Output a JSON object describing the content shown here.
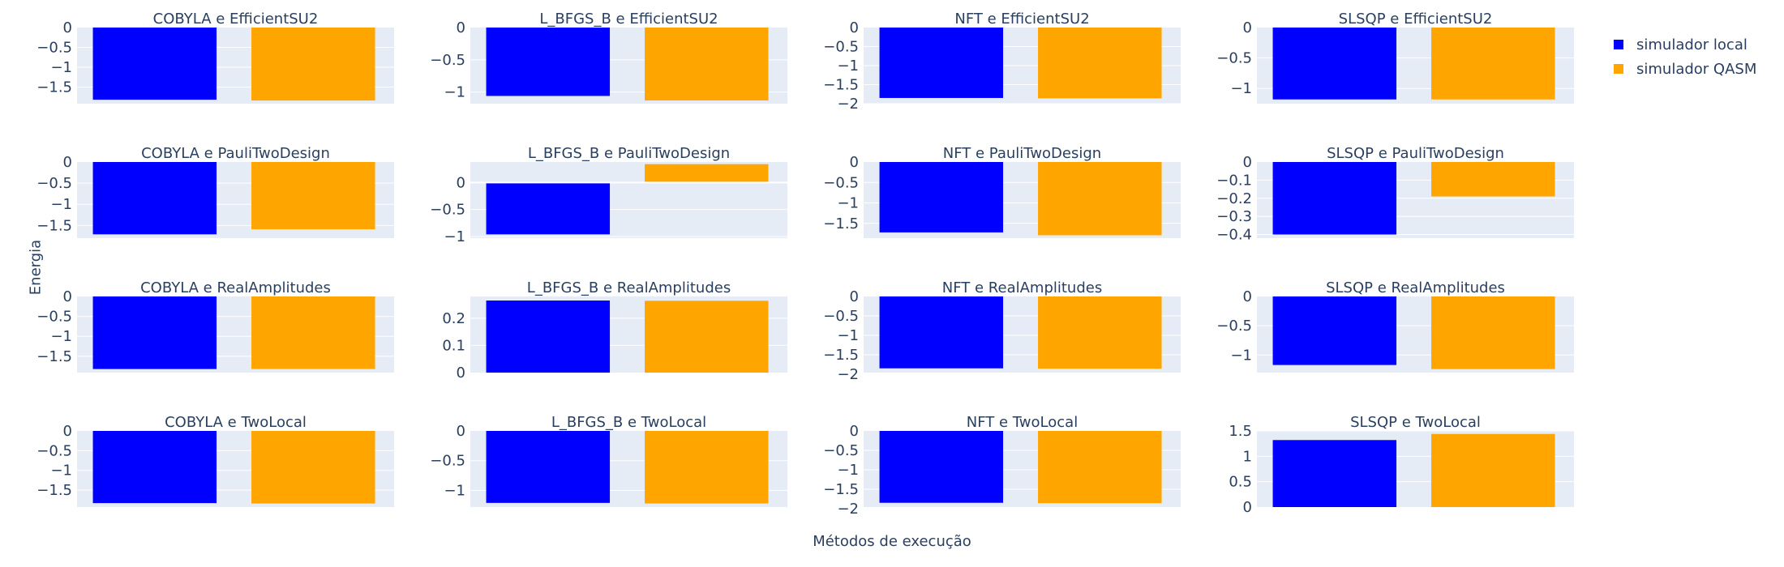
{
  "chart_data": {
    "type": "bar",
    "xlabel": "Métodos de execução",
    "ylabel": "Energia",
    "series": [
      {
        "name": "simulador local",
        "color": "#0000ff"
      },
      {
        "name": "simulador QASM",
        "color": "#ffa500"
      }
    ],
    "panels": [
      {
        "title": "COBYLA e EfficientSU2",
        "values": [
          -1.82,
          -1.84
        ],
        "ylim": [
          -1.92,
          0
        ],
        "ticks": [
          0,
          -0.5,
          -1,
          -1.5
        ]
      },
      {
        "title": "L_BFGS_B e EfficientSU2",
        "values": [
          -1.06,
          -1.13
        ],
        "ylim": [
          -1.18,
          0
        ],
        "ticks": [
          0,
          -0.5,
          -1
        ]
      },
      {
        "title": "NFT e EfficientSU2",
        "values": [
          -1.85,
          -1.86
        ],
        "ylim": [
          -2.0,
          0
        ],
        "ticks": [
          0,
          -0.5,
          -1,
          -1.5,
          -2
        ]
      },
      {
        "title": "SLSQP e EfficientSU2",
        "values": [
          -1.18,
          -1.18
        ],
        "ylim": [
          -1.25,
          0
        ],
        "ticks": [
          0,
          -0.5,
          -1
        ]
      },
      {
        "title": "COBYLA e PauliTwoDesign",
        "values": [
          -1.71,
          -1.59
        ],
        "ylim": [
          -1.8,
          0
        ],
        "ticks": [
          0,
          -0.5,
          -1,
          -1.5
        ]
      },
      {
        "title": "L_BFGS_B e PauliTwoDesign",
        "values": [
          -0.96,
          0.34
        ],
        "ylim": [
          -1.03,
          0.38
        ],
        "ticks": [
          0,
          -0.5,
          -1
        ]
      },
      {
        "title": "NFT e PauliTwoDesign",
        "values": [
          -1.72,
          -1.79
        ],
        "ylim": [
          -1.86,
          0
        ],
        "ticks": [
          0,
          -0.5,
          -1,
          -1.5
        ]
      },
      {
        "title": "SLSQP e PauliTwoDesign",
        "values": [
          -0.4,
          -0.19
        ],
        "ylim": [
          -0.42,
          0
        ],
        "ticks": [
          0,
          -0.1,
          -0.2,
          -0.3,
          -0.4
        ]
      },
      {
        "title": "COBYLA e RealAmplitudes",
        "values": [
          -1.82,
          -1.82
        ],
        "ylim": [
          -1.91,
          0
        ],
        "ticks": [
          0,
          -0.5,
          -1,
          -1.5
        ]
      },
      {
        "title": "L_BFGS_B e RealAmplitudes",
        "values": [
          0.265,
          0.264
        ],
        "ylim": [
          0,
          0.28
        ],
        "ticks": [
          0,
          0.1,
          0.2
        ]
      },
      {
        "title": "NFT e RealAmplitudes",
        "values": [
          -1.85,
          -1.86
        ],
        "ylim": [
          -1.96,
          0
        ],
        "ticks": [
          0,
          -0.5,
          -1,
          -1.5,
          -2
        ]
      },
      {
        "title": "SLSQP e RealAmplitudes",
        "values": [
          -1.17,
          -1.24
        ],
        "ylim": [
          -1.3,
          0
        ],
        "ticks": [
          0,
          -0.5,
          -1
        ]
      },
      {
        "title": "COBYLA e TwoLocal",
        "values": [
          -1.83,
          -1.84
        ],
        "ylim": [
          -1.93,
          0
        ],
        "ticks": [
          0,
          -0.5,
          -1,
          -1.5
        ]
      },
      {
        "title": "L_BFGS_B e TwoLocal",
        "values": [
          -1.21,
          -1.22
        ],
        "ylim": [
          -1.28,
          0
        ],
        "ticks": [
          0,
          -0.5,
          -1
        ]
      },
      {
        "title": "NFT e TwoLocal",
        "values": [
          -1.85,
          -1.86
        ],
        "ylim": [
          -1.96,
          0
        ],
        "ticks": [
          0,
          -0.5,
          -1,
          -1.5,
          -2
        ]
      },
      {
        "title": "SLSQP e TwoLocal",
        "values": [
          1.32,
          1.44
        ],
        "ylim": [
          0,
          1.5
        ],
        "ticks": [
          0,
          0.5,
          1,
          1.5
        ]
      }
    ],
    "legend_position": "top-right",
    "grid": true
  }
}
